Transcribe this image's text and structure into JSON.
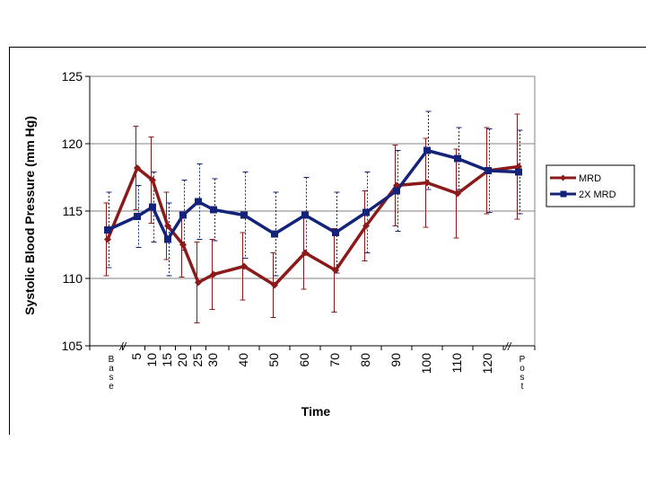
{
  "chart_data": {
    "type": "line",
    "title": "",
    "xlabel": "Time",
    "ylabel": "Systolic Blood Pressure (mm Hg)",
    "ylim": [
      105,
      125
    ],
    "yticks": [
      105,
      110,
      115,
      120,
      125
    ],
    "grid": "horizontal",
    "legend_position": "right",
    "categories": [
      "Base",
      "5",
      "10",
      "15",
      "20",
      "25",
      "30",
      "40",
      "50",
      "60",
      "70",
      "80",
      "90",
      "100",
      "110",
      "120",
      "Post"
    ],
    "break_marks": [
      "//",
      "//"
    ],
    "series": [
      {
        "name": "MRD",
        "color": "#8b1a1a",
        "marker": "diamond",
        "values": [
          112.9,
          118.2,
          117.3,
          113.9,
          112.5,
          109.7,
          110.3,
          110.9,
          109.5,
          111.9,
          110.6,
          113.9,
          116.9,
          117.1,
          116.3,
          118.0,
          118.3
        ],
        "error": [
          2.7,
          3.1,
          3.2,
          2.5,
          2.4,
          3.0,
          2.6,
          2.5,
          2.4,
          2.7,
          3.1,
          2.6,
          3.0,
          3.3,
          3.3,
          3.2,
          3.9
        ]
      },
      {
        "name": "2X MRD",
        "color": "#13237a",
        "marker": "square",
        "values": [
          113.6,
          114.6,
          115.3,
          112.9,
          114.7,
          115.7,
          115.1,
          114.7,
          113.3,
          114.7,
          113.4,
          114.9,
          116.5,
          119.5,
          118.9,
          118.0,
          117.9
        ],
        "error": [
          2.8,
          2.3,
          2.6,
          2.7,
          2.6,
          2.8,
          2.3,
          3.2,
          3.1,
          2.8,
          3.0,
          3.0,
          3.0,
          2.9,
          2.3,
          3.1,
          3.1
        ]
      }
    ]
  }
}
